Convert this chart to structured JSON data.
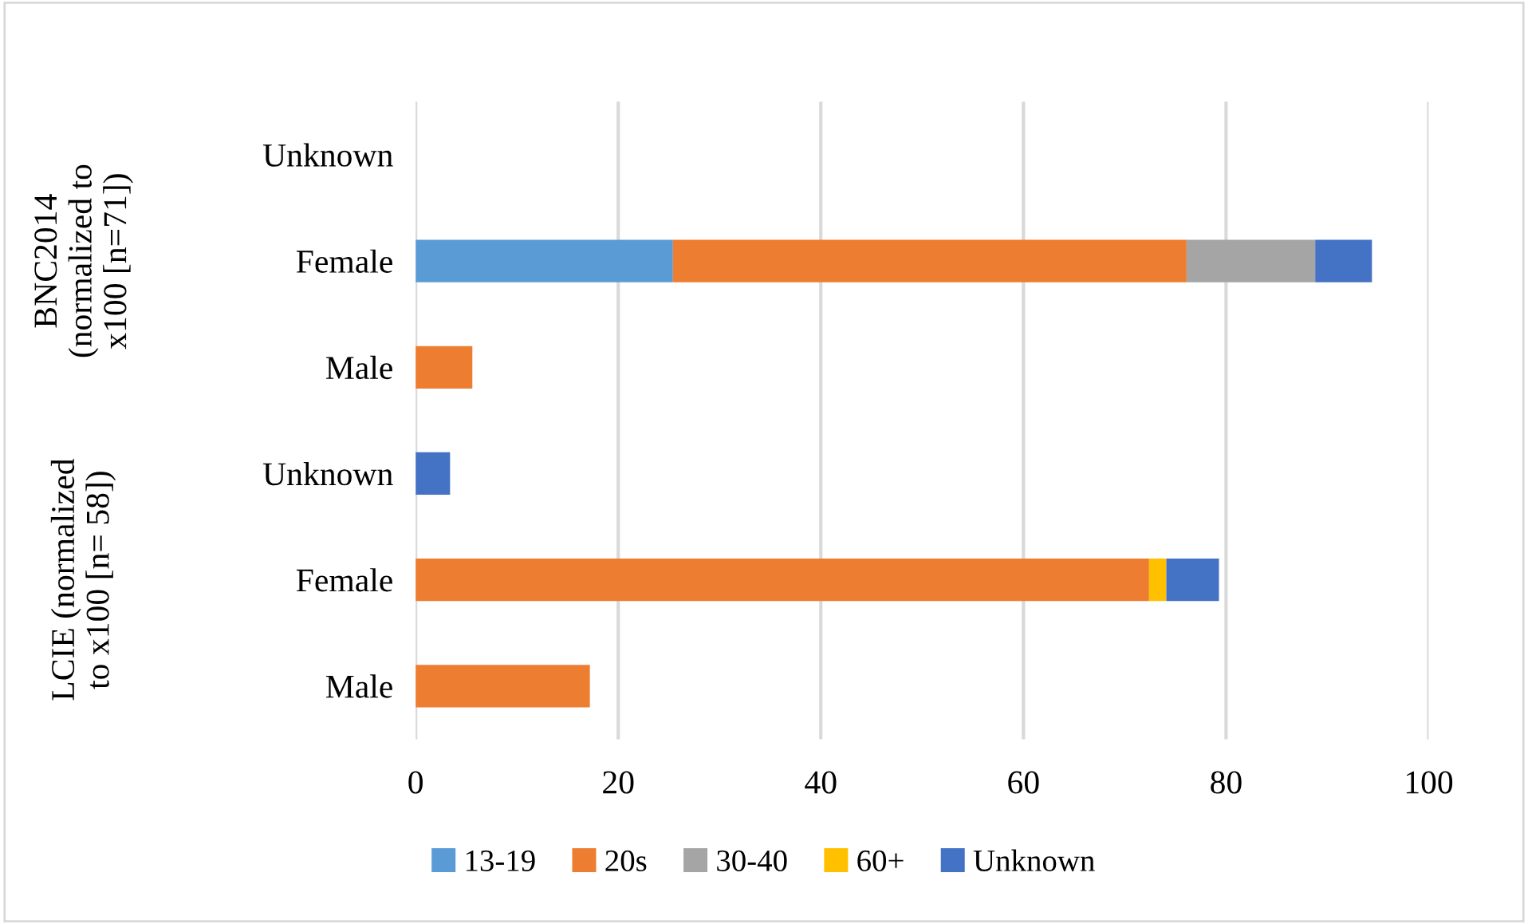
{
  "chart_data": {
    "type": "bar",
    "orientation": "horizontal",
    "stacked": true,
    "categories": [
      "Unknown",
      "Female",
      "Male",
      "Unknown",
      "Female",
      "Male"
    ],
    "series": [
      {
        "name": "13-19",
        "color": "#5b9bd5",
        "values": [
          null,
          25.4,
          null,
          null,
          null,
          null
        ]
      },
      {
        "name": "20s",
        "color": "#ed7d31",
        "values": [
          null,
          50.7,
          5.6,
          null,
          72.4,
          17.2
        ]
      },
      {
        "name": "30-40",
        "color": "#a5a5a5",
        "values": [
          null,
          12.7,
          null,
          null,
          null,
          null
        ]
      },
      {
        "name": "60+",
        "color": "#ffc000",
        "values": [
          null,
          null,
          null,
          null,
          1.7,
          null
        ]
      },
      {
        "name": "Unknown",
        "color": "#4472c4",
        "values": [
          0,
          5.6,
          null,
          3.4,
          5.2,
          null
        ]
      }
    ],
    "xlim": [
      0,
      100
    ],
    "xticks": [
      0,
      20,
      40,
      60,
      80,
      100
    ],
    "grid": "x",
    "legend": "bottom",
    "annotations": [
      "BNC2014\n(normalized to\nx100 [n=71])",
      "LCIE (normalized\nto x100 [n= 58])"
    ]
  }
}
